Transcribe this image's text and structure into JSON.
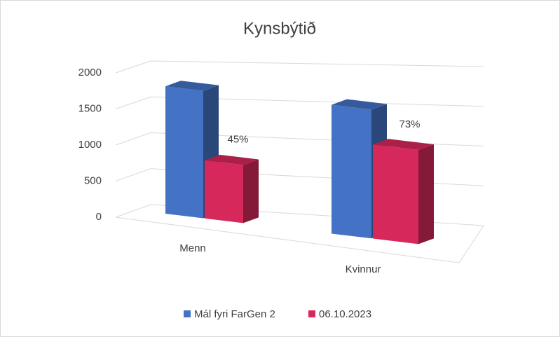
{
  "chart_data": {
    "type": "bar3d",
    "title": "Kynsbýtið",
    "categories": [
      "Menn",
      "Kvinnur"
    ],
    "series": [
      {
        "name": "Mál fyri FarGen 2",
        "color": "#4472c4",
        "values": [
          1800,
          1820
        ]
      },
      {
        "name": "06.10.2023",
        "color": "#d6285a",
        "values": [
          820,
          1330
        ]
      }
    ],
    "annotations": [
      "45%",
      "73%"
    ],
    "ylim": [
      0,
      2000
    ],
    "yticks": [
      0,
      500,
      1000,
      1500,
      2000
    ],
    "grid": true,
    "legend": "bottom"
  }
}
